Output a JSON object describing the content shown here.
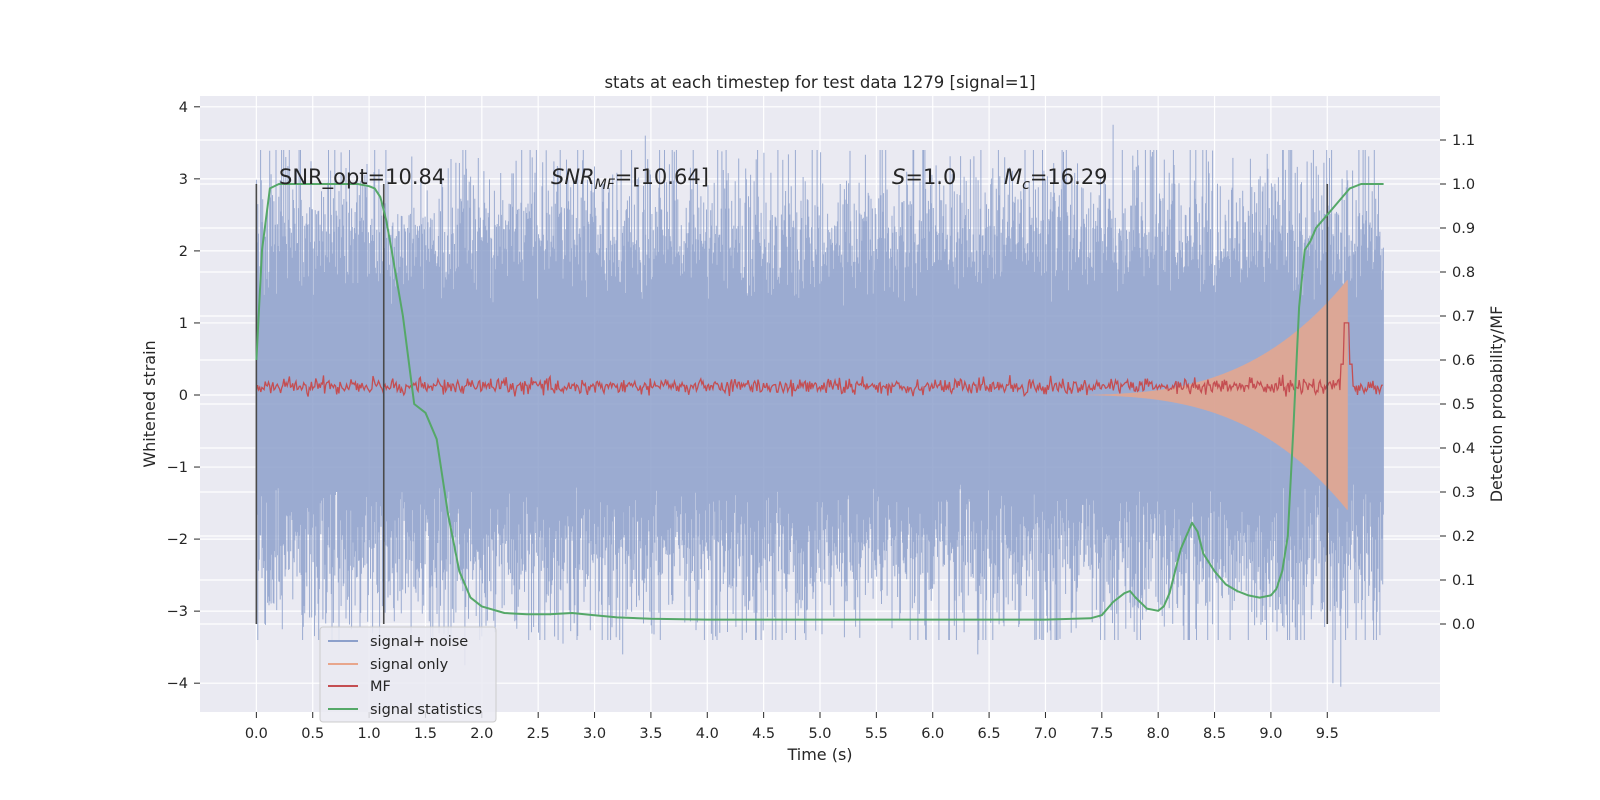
{
  "chart_data": {
    "type": "line",
    "title": "stats at each timestep for test data 1279 [signal=1]",
    "xlabel": "Time (s)",
    "ylabel_left": "Whitened strain",
    "ylabel_right": "Detection probability/MF",
    "xlim": [
      -0.5,
      10.5
    ],
    "ylim_left": [
      -4.4,
      4.15
    ],
    "ylim_right": [
      -0.2,
      1.2
    ],
    "x_ticks": [
      0.0,
      0.5,
      1.0,
      1.5,
      2.0,
      2.5,
      3.0,
      3.5,
      4.0,
      4.5,
      5.0,
      5.5,
      6.0,
      6.5,
      7.0,
      7.5,
      8.0,
      8.5,
      9.0,
      9.5
    ],
    "x_tick_labels": [
      "0.0",
      "0.5",
      "1.0",
      "1.5",
      "2.0",
      "2.5",
      "3.0",
      "3.5",
      "4.0",
      "4.5",
      "5.0",
      "5.5",
      "6.0",
      "6.5",
      "7.0",
      "7.5",
      "8.0",
      "8.5",
      "9.0",
      "9.5"
    ],
    "y_left_ticks": [
      -4,
      -3,
      -2,
      -1,
      0,
      1,
      2,
      3,
      4
    ],
    "y_left_tick_labels": [
      "−4",
      "−3",
      "−2",
      "−1",
      "0",
      "1",
      "2",
      "3",
      "4"
    ],
    "y_right_ticks": [
      0.0,
      0.1,
      0.2,
      0.3,
      0.4,
      0.5,
      0.6,
      0.7,
      0.8,
      0.9,
      1.0,
      1.1
    ],
    "y_right_tick_labels": [
      "0.0",
      "0.1",
      "0.2",
      "0.3",
      "0.4",
      "0.5",
      "0.6",
      "0.7",
      "0.8",
      "0.9",
      "1.0",
      "1.1"
    ],
    "grid": true,
    "legend_position": "lower-left",
    "annotations": {
      "snr_opt": "SNR_opt=10.84",
      "snr_mf_base": "SNR",
      "snr_mf_sub": "MF",
      "snr_mf_value": "=[10.64]",
      "s_base": "S",
      "s_value": "=1.0",
      "mc_base": "M",
      "mc_sub": "c",
      "mc_value": "=16.29"
    },
    "vertical_markers_x": [
      0.0,
      1.13,
      9.5
    ],
    "series": [
      {
        "name": "signal+ noise",
        "color": "#8da0cb",
        "axis": "left",
        "x_range": [
          0.0,
          10.0
        ],
        "typical_peak": 2.2,
        "extreme_peaks": [
          {
            "x": 3.45,
            "y": 3.6
          },
          {
            "x": 7.6,
            "y": 3.75
          },
          {
            "x": 2.72,
            "y": -3.45
          },
          {
            "x": 3.25,
            "y": -3.6
          },
          {
            "x": 6.4,
            "y": -3.6
          },
          {
            "x": 9.55,
            "y": -4.0
          },
          {
            "x": 9.62,
            "y": -4.05
          },
          {
            "x": 5.93,
            "y": -3.2
          },
          {
            "x": 1.85,
            "y": -3.75
          }
        ]
      },
      {
        "name": "signal only",
        "color": "#e8a68c",
        "axis": "left",
        "x_range": [
          7.0,
          9.68
        ],
        "end_amplitude": 1.6
      },
      {
        "name": "MF",
        "color": "#c44e52",
        "axis": "left",
        "x_range": [
          0.0,
          10.0
        ],
        "baseline": 0.12,
        "peak": {
          "x": 9.67,
          "y": 1.0
        }
      },
      {
        "name": "signal statistics",
        "color": "#55a868",
        "axis": "right",
        "x": [
          0.0,
          0.05,
          0.12,
          0.2,
          0.35,
          0.5,
          0.7,
          0.9,
          1.0,
          1.05,
          1.1,
          1.15,
          1.2,
          1.3,
          1.4,
          1.5,
          1.6,
          1.7,
          1.8,
          1.9,
          2.0,
          2.2,
          2.4,
          2.6,
          2.8,
          3.0,
          3.2,
          3.5,
          4.0,
          4.5,
          5.0,
          5.5,
          6.0,
          6.5,
          7.0,
          7.4,
          7.5,
          7.6,
          7.7,
          7.75,
          7.8,
          7.9,
          8.0,
          8.05,
          8.1,
          8.2,
          8.3,
          8.35,
          8.4,
          8.5,
          8.6,
          8.7,
          8.8,
          8.9,
          9.0,
          9.05,
          9.1,
          9.15,
          9.2,
          9.25,
          9.3,
          9.35,
          9.4,
          9.5,
          9.6,
          9.7,
          9.8,
          9.9,
          10.0
        ],
        "y": [
          0.6,
          0.85,
          0.99,
          1.0,
          1.0,
          1.0,
          1.0,
          1.0,
          0.995,
          0.99,
          0.97,
          0.92,
          0.85,
          0.7,
          0.5,
          0.48,
          0.42,
          0.25,
          0.12,
          0.06,
          0.04,
          0.025,
          0.022,
          0.022,
          0.025,
          0.02,
          0.015,
          0.012,
          0.01,
          0.01,
          0.01,
          0.01,
          0.01,
          0.01,
          0.01,
          0.013,
          0.02,
          0.05,
          0.07,
          0.075,
          0.06,
          0.035,
          0.03,
          0.04,
          0.07,
          0.17,
          0.23,
          0.21,
          0.16,
          0.12,
          0.09,
          0.075,
          0.065,
          0.06,
          0.065,
          0.08,
          0.12,
          0.2,
          0.45,
          0.72,
          0.85,
          0.87,
          0.9,
          0.93,
          0.96,
          0.99,
          1.0,
          1.0,
          1.0
        ]
      }
    ]
  }
}
